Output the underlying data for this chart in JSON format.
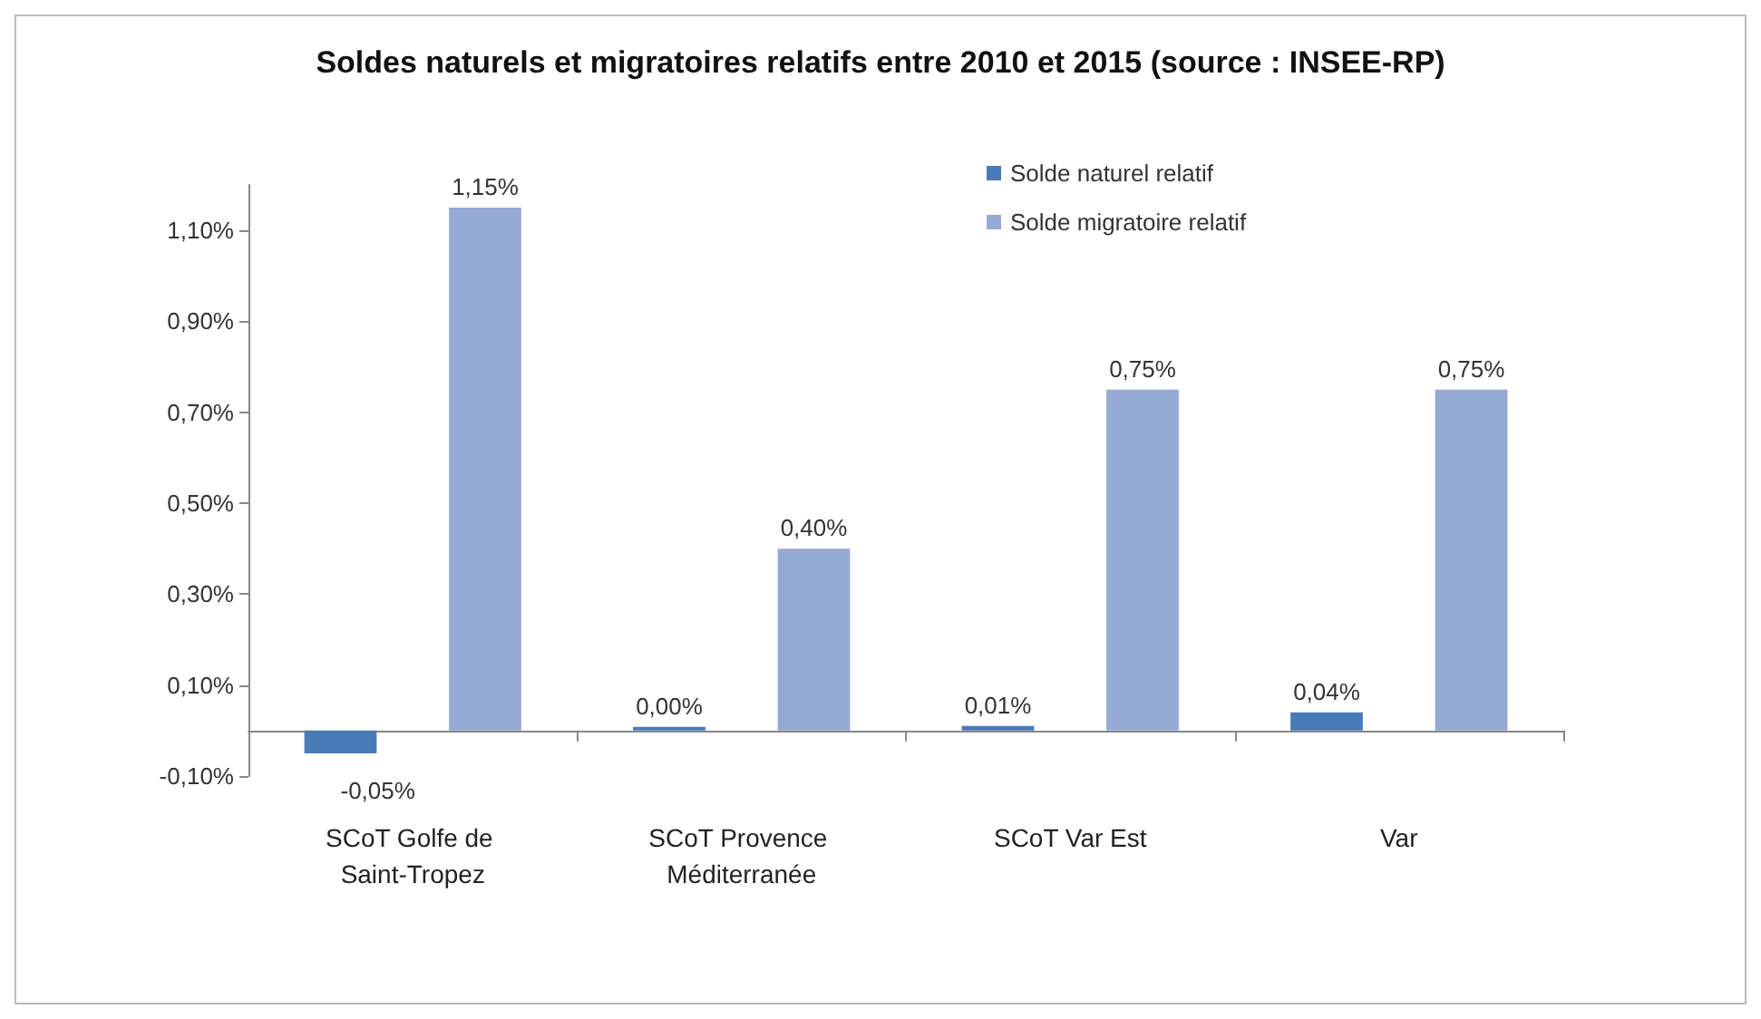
{
  "chart_data": {
    "type": "bar",
    "title": "Soldes naturels et migratoires relatifs entre 2010 et 2015 (source : INSEE-RP)",
    "categories": [
      "SCoT Golfe de Saint-Tropez",
      "SCoT Provence Méditerranée",
      "SCoT Var Est",
      "Var"
    ],
    "series": [
      {
        "name": "Solde naturel relatif",
        "color": "#4a7ab5",
        "values": [
          -0.05,
          0.0,
          0.01,
          0.04
        ],
        "value_labels": [
          "-0,05%",
          "0,00%",
          "0,01%",
          "0,04%"
        ]
      },
      {
        "name": "Solde migratoire relatif",
        "color": "#95aad4",
        "values": [
          1.15,
          0.4,
          0.75,
          0.75
        ],
        "value_labels": [
          "1,15%",
          "0,40%",
          "0,75%",
          "0,75%"
        ]
      }
    ],
    "ylim": [
      -0.1,
      1.2
    ],
    "yticks": [
      {
        "value": -0.1,
        "label": "-0,10%"
      },
      {
        "value": 0.1,
        "label": "0,10%"
      },
      {
        "value": 0.3,
        "label": "0,30%"
      },
      {
        "value": 0.5,
        "label": "0,50%"
      },
      {
        "value": 0.7,
        "label": "0,70%"
      },
      {
        "value": 0.9,
        "label": "0,90%"
      },
      {
        "value": 1.1,
        "label": "1,10%"
      }
    ],
    "grid": false,
    "legend": "top right"
  }
}
